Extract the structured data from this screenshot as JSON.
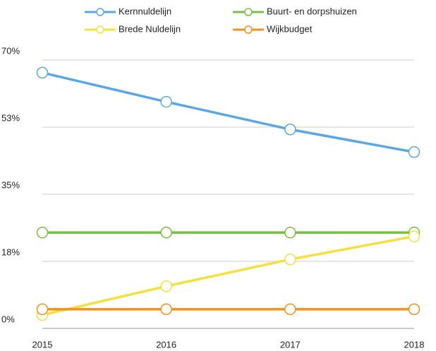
{
  "chart_data": {
    "type": "line",
    "categories": [
      "2015",
      "2016",
      "2017",
      "2018"
    ],
    "series": [
      {
        "name": "Kernnuldelijn",
        "color": "#5aa7e8",
        "values": [
          66.7,
          59.1,
          51.9,
          46
        ]
      },
      {
        "name": "Buurt- en dorpshuizen",
        "color": "#77c043",
        "values": [
          25,
          25,
          25,
          25
        ]
      },
      {
        "name": "Brede Nuldelijn",
        "color": "#f5e03c",
        "values": [
          3.5,
          11,
          18,
          24
        ]
      },
      {
        "name": "Wijkbudget",
        "color": "#f0921e",
        "values": [
          5,
          5,
          5,
          5
        ]
      }
    ],
    "ylim": [
      0,
      70
    ],
    "yticks": [
      {
        "value": 0,
        "label": "0%"
      },
      {
        "value": 17.5,
        "label": "18%"
      },
      {
        "value": 35,
        "label": "35%"
      },
      {
        "value": 52.5,
        "label": "53%"
      },
      {
        "value": 70,
        "label": "70%"
      }
    ],
    "grid": true,
    "legend": "top"
  }
}
